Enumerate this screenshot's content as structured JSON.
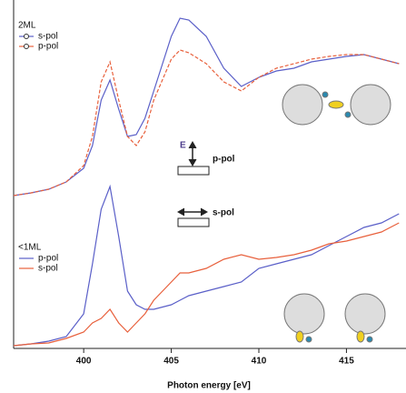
{
  "chart_data": {
    "type": "line",
    "x": [
      396,
      397,
      398,
      399,
      400,
      400.5,
      401,
      401.5,
      402,
      402.5,
      403,
      403.5,
      404,
      405,
      405.5,
      406,
      407,
      408,
      409,
      410,
      411,
      412,
      413,
      414,
      415,
      416,
      417,
      418
    ],
    "xlim": [
      396,
      418.4
    ],
    "ylim": [
      0,
      383
    ],
    "xticks": [
      400,
      405,
      410,
      415
    ],
    "xlabel": "Photon energy [eV]",
    "groups": [
      {
        "label": "2ML",
        "series": [
          {
            "name": "s-pol",
            "color": "#5a5fc8",
            "values": [
              168,
              171,
              175,
              183,
              198,
              223,
              273,
              295,
              263,
              233,
              235,
              253,
              283,
              343,
              363,
              361,
              343,
              308,
              288,
              298,
              305,
              308,
              315,
              318,
              321,
              323,
              318,
              313
            ]
          },
          {
            "name": "p-pol",
            "color": "#e8603c",
            "values": [
              168,
              171,
              175,
              183,
              201,
              233,
              293,
              315,
              273,
              233,
              223,
              238,
              273,
              318,
              328,
              325,
              313,
              293,
              283,
              298,
              308,
              313,
              318,
              321,
              323,
              323,
              318,
              313
            ]
          }
        ]
      },
      {
        "label": "<1ML",
        "series": [
          {
            "name": "p-pol",
            "color": "#5a5fc8",
            "values": [
              3,
              5,
              8,
              13,
              38,
              93,
              153,
              178,
              123,
              63,
              48,
              43,
              43,
              48,
              53,
              58,
              63,
              68,
              73,
              88,
              93,
              98,
              103,
              113,
              123,
              133,
              138,
              148
            ]
          },
          {
            "name": "s-pol",
            "color": "#e8603c",
            "values": [
              3,
              5,
              6,
              11,
              18,
              28,
              33,
              43,
              28,
              18,
              28,
              38,
              53,
              73,
              83,
              83,
              88,
              98,
              103,
              98,
              100,
              103,
              108,
              115,
              118,
              123,
              128,
              138
            ]
          }
        ]
      }
    ],
    "annotations": [
      "E",
      "p-pol",
      "s-pol"
    ]
  }
}
